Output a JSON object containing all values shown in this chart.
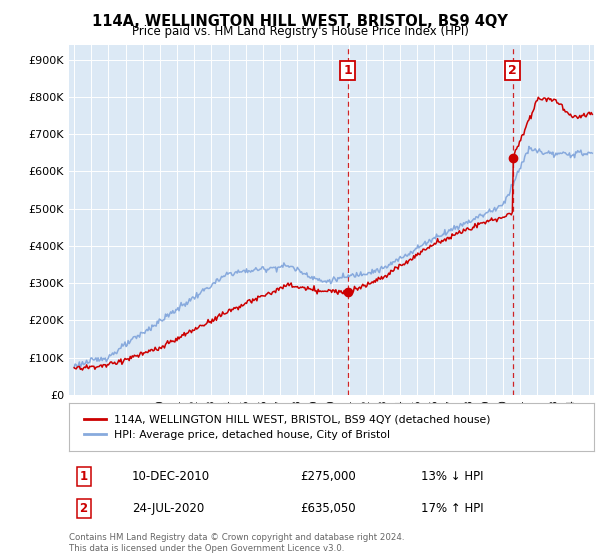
{
  "title": "114A, WELLINGTON HILL WEST, BRISTOL, BS9 4QY",
  "subtitle": "Price paid vs. HM Land Registry's House Price Index (HPI)",
  "ylabel_ticks": [
    "£0",
    "£100K",
    "£200K",
    "£300K",
    "£400K",
    "£500K",
    "£600K",
    "£700K",
    "£800K",
    "£900K"
  ],
  "ytick_values": [
    0,
    100000,
    200000,
    300000,
    400000,
    500000,
    600000,
    700000,
    800000,
    900000
  ],
  "ylim": [
    0,
    940000
  ],
  "xlim_start": 1994.7,
  "xlim_end": 2025.3,
  "line1_color": "#cc0000",
  "line2_color": "#88aadd",
  "bg_color": "#dce9f5",
  "marker1_date": 2010.94,
  "marker1_value": 275000,
  "marker2_date": 2020.56,
  "marker2_value": 635050,
  "vline1_x": 2010.94,
  "vline2_x": 2020.56,
  "legend_line1": "114A, WELLINGTON HILL WEST, BRISTOL, BS9 4QY (detached house)",
  "legend_line2": "HPI: Average price, detached house, City of Bristol",
  "annotation1_box": "1",
  "annotation1_date": "10-DEC-2010",
  "annotation1_price": "£275,000",
  "annotation1_hpi": "13% ↓ HPI",
  "annotation2_box": "2",
  "annotation2_date": "24-JUL-2020",
  "annotation2_price": "£635,050",
  "annotation2_hpi": "17% ↑ HPI",
  "footer": "Contains HM Land Registry data © Crown copyright and database right 2024.\nThis data is licensed under the Open Government Licence v3.0."
}
